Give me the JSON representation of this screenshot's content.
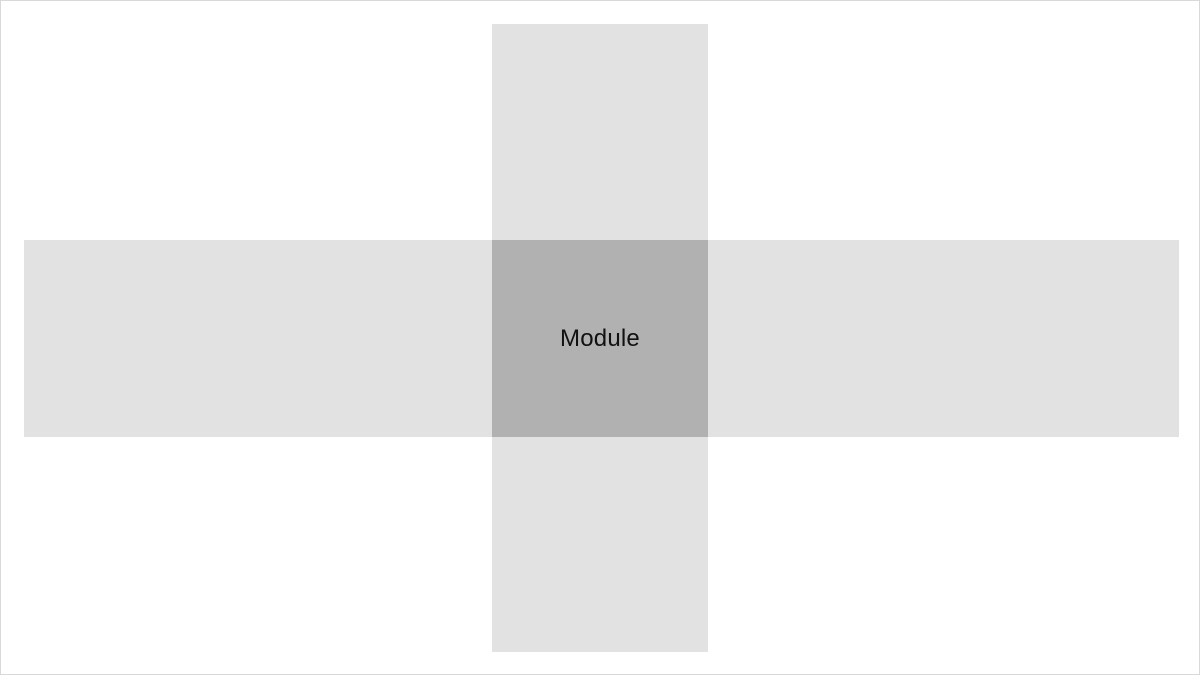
{
  "diagram": {
    "module_label": "Module",
    "colors": {
      "background": "#ffffff",
      "border": "#d9d9d9",
      "band": "#e2e2e2",
      "intersection": "#b1b1b1",
      "label_text": "#111111"
    }
  }
}
